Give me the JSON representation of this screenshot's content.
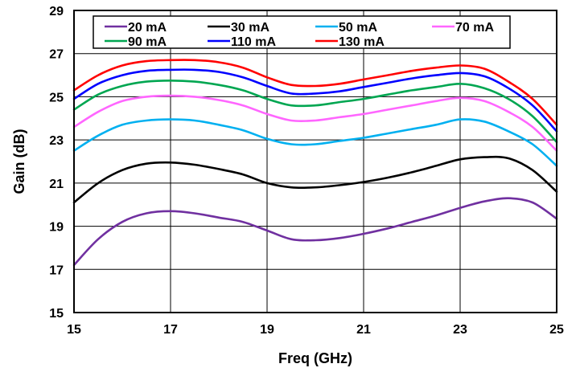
{
  "chart_data": {
    "type": "line",
    "xlabel": "Freq (GHz)",
    "ylabel": "Gain (dB)",
    "xlim": [
      15,
      25
    ],
    "ylim": [
      15,
      29
    ],
    "xticks": [
      15,
      17,
      19,
      21,
      23,
      25
    ],
    "yticks": [
      15,
      17,
      19,
      21,
      23,
      25,
      27,
      29
    ],
    "grid": true,
    "legend_position": "top",
    "series": [
      {
        "name": "20 mA",
        "color": "#7030a0",
        "x": [
          15,
          15.5,
          16,
          16.5,
          17,
          17.5,
          18,
          18.5,
          19,
          19.5,
          20,
          20.5,
          21,
          21.5,
          22,
          22.5,
          23,
          23.5,
          24,
          24.5,
          25
        ],
        "y": [
          17.2,
          18.4,
          19.2,
          19.6,
          19.7,
          19.6,
          19.4,
          19.2,
          18.8,
          18.4,
          18.35,
          18.45,
          18.65,
          18.9,
          19.2,
          19.5,
          19.85,
          20.15,
          20.3,
          20.1,
          19.35
        ]
      },
      {
        "name": "30 mA",
        "color": "#000000",
        "x": [
          15,
          15.5,
          16,
          16.5,
          17,
          17.5,
          18,
          18.5,
          19,
          19.5,
          20,
          20.5,
          21,
          21.5,
          22,
          22.5,
          23,
          23.5,
          24,
          24.5,
          25
        ],
        "y": [
          20.1,
          21.0,
          21.6,
          21.9,
          21.95,
          21.85,
          21.65,
          21.4,
          21.0,
          20.8,
          20.8,
          20.9,
          21.05,
          21.25,
          21.5,
          21.8,
          22.1,
          22.2,
          22.15,
          21.6,
          20.6
        ]
      },
      {
        "name": "50 mA",
        "color": "#00b0f0",
        "x": [
          15,
          15.5,
          16,
          16.5,
          17,
          17.5,
          18,
          18.5,
          19,
          19.5,
          20,
          20.5,
          21,
          21.5,
          22,
          22.5,
          23,
          23.5,
          24,
          24.5,
          25
        ],
        "y": [
          22.5,
          23.2,
          23.7,
          23.9,
          23.95,
          23.9,
          23.7,
          23.45,
          23.05,
          22.8,
          22.8,
          22.95,
          23.1,
          23.3,
          23.5,
          23.7,
          23.95,
          23.85,
          23.4,
          22.8,
          21.8
        ]
      },
      {
        "name": "70 mA",
        "color": "#ff66ff",
        "x": [
          15,
          15.5,
          16,
          16.5,
          17,
          17.5,
          18,
          18.5,
          19,
          19.5,
          20,
          20.5,
          21,
          21.5,
          22,
          22.5,
          23,
          23.5,
          24,
          24.5,
          25
        ],
        "y": [
          23.6,
          24.3,
          24.8,
          25.0,
          25.05,
          25.0,
          24.85,
          24.6,
          24.2,
          23.9,
          23.9,
          24.05,
          24.2,
          24.4,
          24.6,
          24.8,
          24.95,
          24.8,
          24.3,
          23.6,
          22.5
        ]
      },
      {
        "name": "90 mA",
        "color": "#00a651",
        "x": [
          15,
          15.5,
          16,
          16.5,
          17,
          17.5,
          18,
          18.5,
          19,
          19.5,
          20,
          20.5,
          21,
          21.5,
          22,
          22.5,
          23,
          23.5,
          24,
          24.5,
          25
        ],
        "y": [
          24.4,
          25.1,
          25.5,
          25.7,
          25.75,
          25.7,
          25.55,
          25.3,
          24.9,
          24.6,
          24.6,
          24.75,
          24.9,
          25.1,
          25.3,
          25.45,
          25.6,
          25.4,
          24.9,
          24.1,
          22.9
        ]
      },
      {
        "name": "110 mA",
        "color": "#0000ff",
        "x": [
          15,
          15.5,
          16,
          16.5,
          17,
          17.5,
          18,
          18.5,
          19,
          19.5,
          20,
          20.5,
          21,
          21.5,
          22,
          22.5,
          23,
          23.5,
          24,
          24.5,
          25
        ],
        "y": [
          24.9,
          25.6,
          26.0,
          26.2,
          26.25,
          26.25,
          26.15,
          25.9,
          25.5,
          25.15,
          25.15,
          25.25,
          25.45,
          25.65,
          25.85,
          26.0,
          26.1,
          25.95,
          25.4,
          24.6,
          23.4
        ]
      },
      {
        "name": "130 mA",
        "color": "#ff0000",
        "x": [
          15,
          15.5,
          16,
          16.5,
          17,
          17.5,
          18,
          18.5,
          19,
          19.5,
          20,
          20.5,
          21,
          21.5,
          22,
          22.5,
          23,
          23.5,
          24,
          24.5,
          25
        ],
        "y": [
          25.3,
          26.0,
          26.45,
          26.65,
          26.7,
          26.7,
          26.6,
          26.35,
          25.9,
          25.55,
          25.5,
          25.6,
          25.8,
          26.0,
          26.2,
          26.35,
          26.45,
          26.3,
          25.7,
          24.9,
          23.7
        ]
      }
    ]
  }
}
